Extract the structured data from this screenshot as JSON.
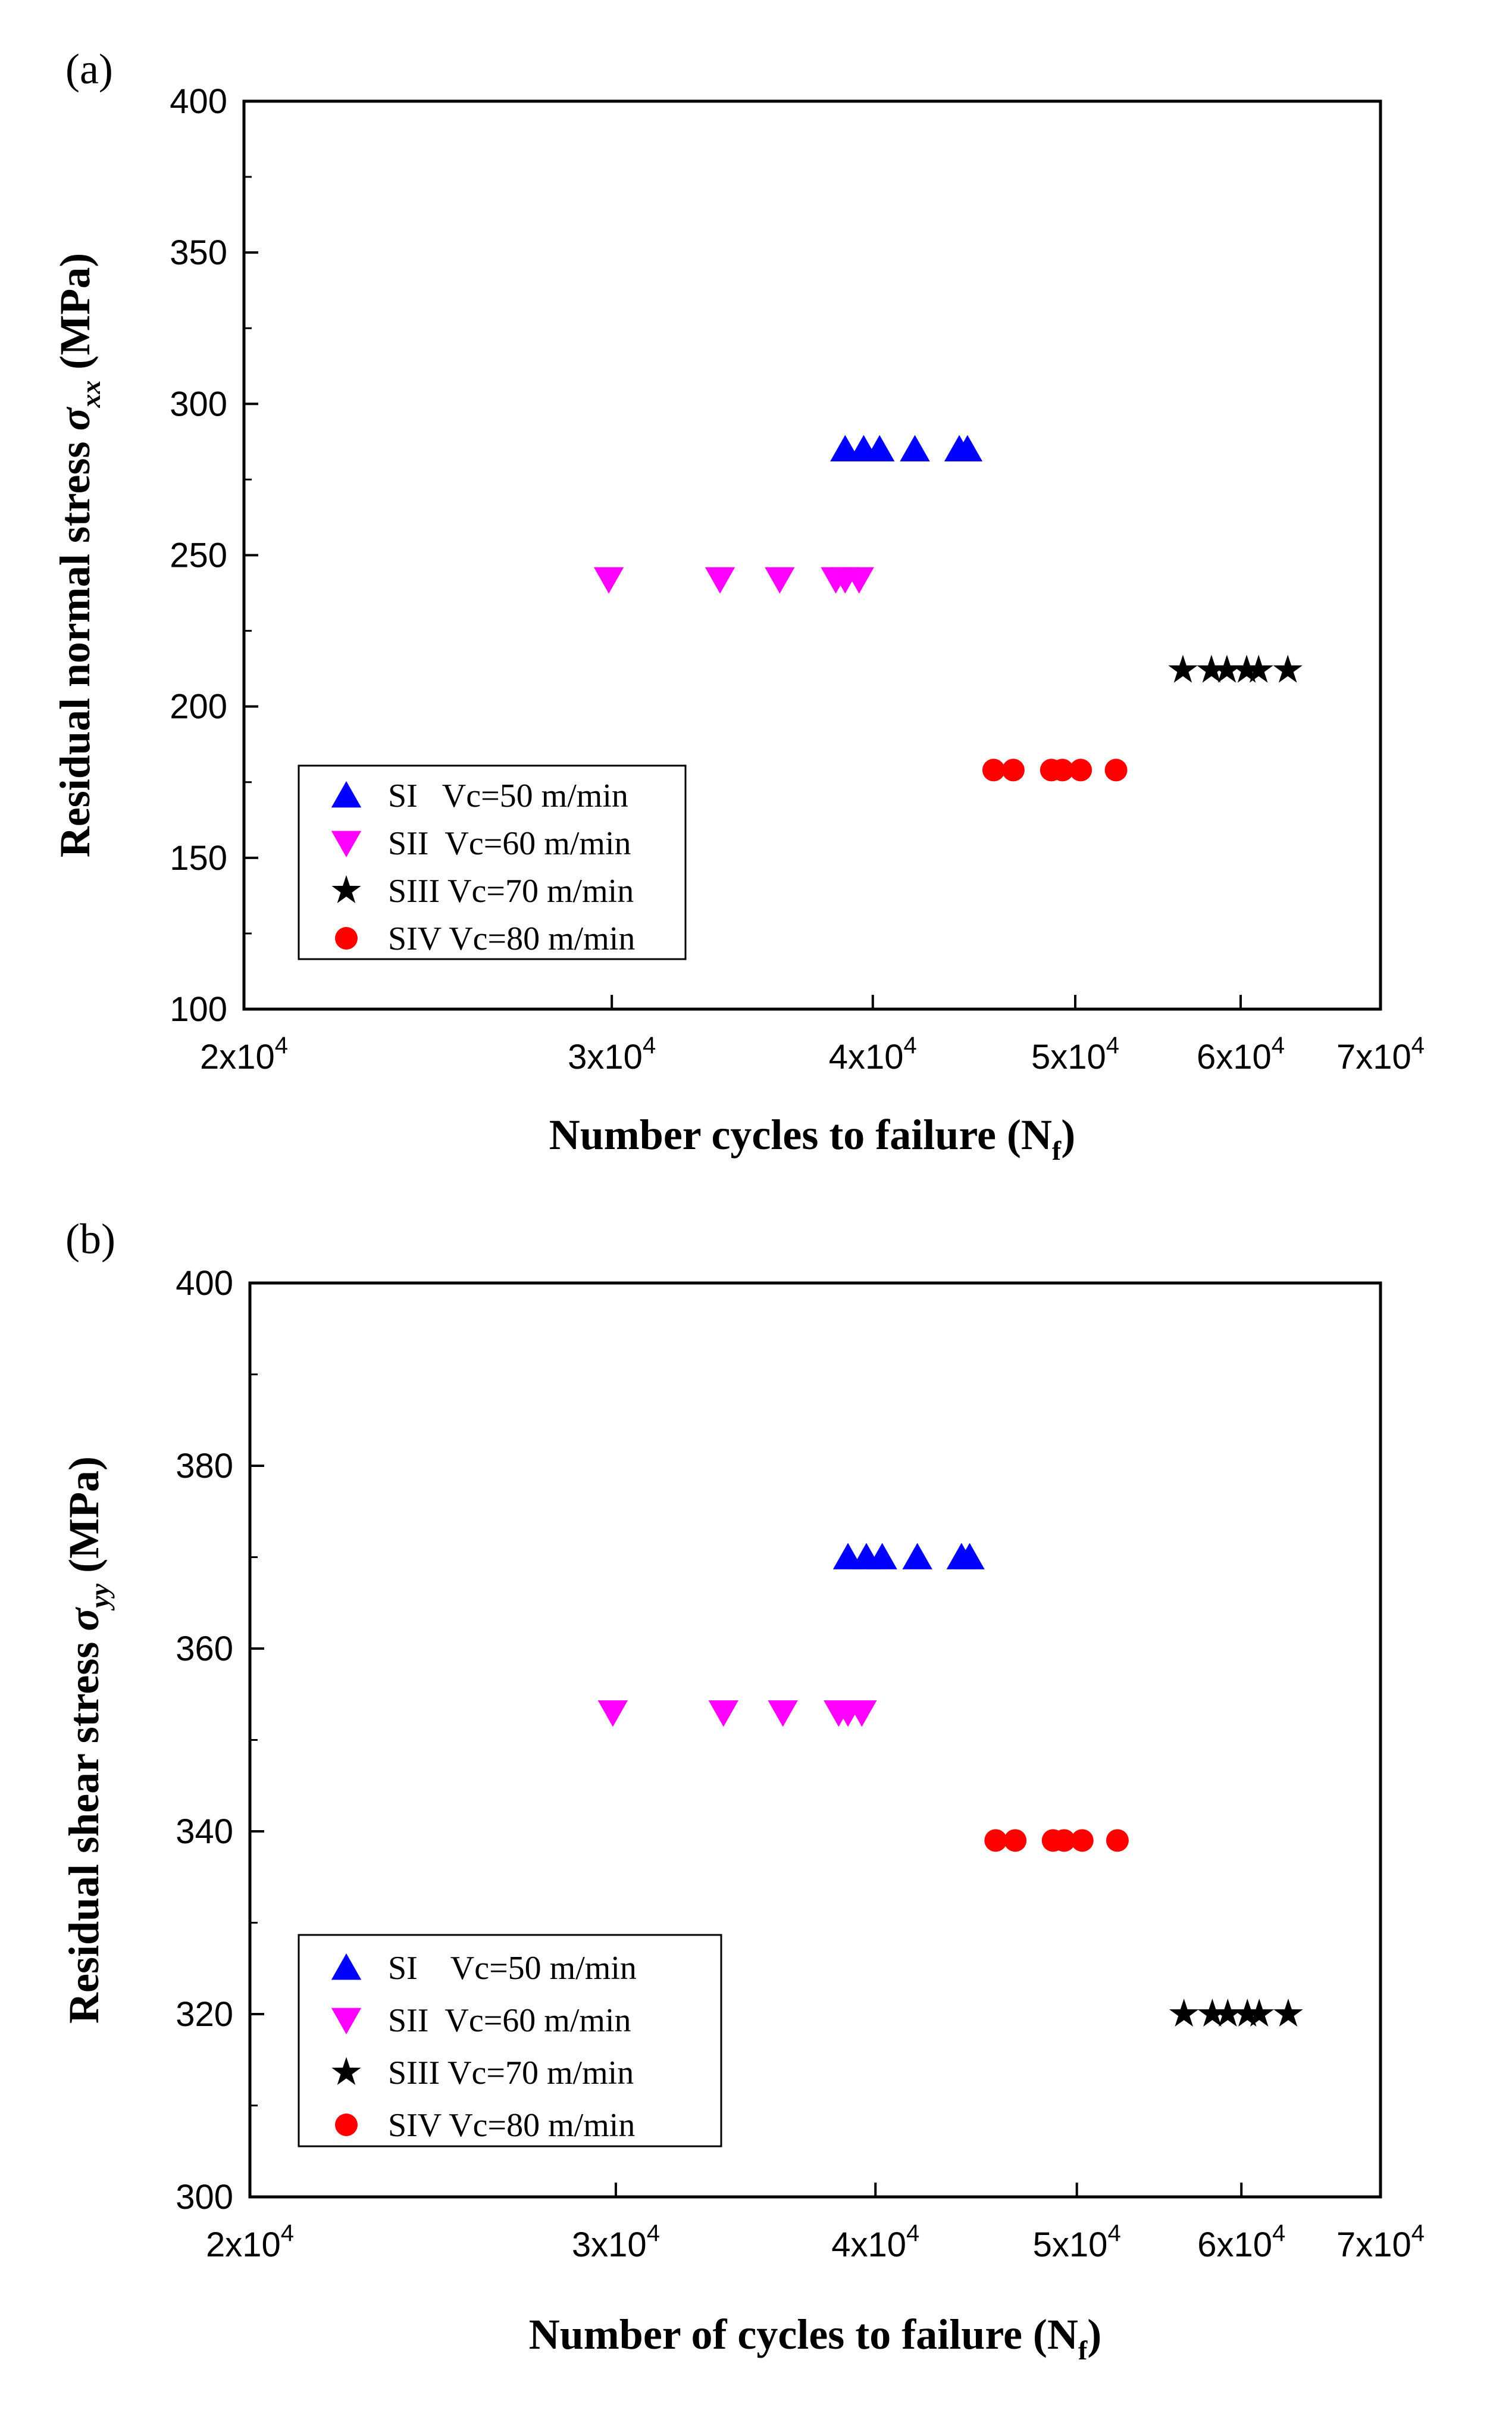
{
  "chart_data": [
    {
      "type": "scatter",
      "panel_label": "(a)",
      "xscale": "log",
      "xlim": [
        20000,
        70000
      ],
      "ylim": [
        100,
        400
      ],
      "yticks": [
        100,
        150,
        200,
        250,
        300,
        350,
        400
      ],
      "xticks": [
        {
          "value": 20000,
          "mant": "2x10",
          "exp": "4"
        },
        {
          "value": 30000,
          "mant": "3x10",
          "exp": "4"
        },
        {
          "value": 40000,
          "mant": "4x10",
          "exp": "4"
        },
        {
          "value": 50000,
          "mant": "5x10",
          "exp": "4"
        },
        {
          "value": 60000,
          "mant": "6x10",
          "exp": "4"
        },
        {
          "value": 70000,
          "mant": "7x10",
          "exp": "4"
        }
      ],
      "xlabel_main": "Number cycles to failure (N",
      "xlabel_sub": "f",
      "xlabel_end": ")",
      "ylabel_main": "Residual normal stress ",
      "ylabel_sym": "σ",
      "ylabel_sub": "xx",
      "ylabel_end": " (MPa)",
      "legend_position": "bottom-left",
      "series": [
        {
          "name": "SI   Vc=50 m/min",
          "marker": "triangle-up",
          "color": "#0000ff",
          "x": [
            38800,
            39600,
            40300,
            41900,
            44000,
            44400
          ],
          "y": [
            285,
            285,
            285,
            285,
            285,
            285
          ]
        },
        {
          "name": "SII  Vc=60 m/min",
          "marker": "triangle-down",
          "color": "#ff00ff",
          "x": [
            29900,
            33800,
            36100,
            38400,
            38800,
            39400
          ],
          "y": [
            242,
            242,
            242,
            242,
            242,
            242
          ]
        },
        {
          "name": "SIII Vc=70 m/min",
          "marker": "star",
          "color": "#000000",
          "x": [
            56300,
            58100,
            59100,
            60400,
            61200,
            63200
          ],
          "y": [
            212,
            212,
            212,
            212,
            212,
            212
          ]
        },
        {
          "name": "SIV Vc=80 m/min",
          "marker": "circle",
          "color": "#ff0000",
          "x": [
            45700,
            46700,
            48700,
            49300,
            50300,
            52300
          ],
          "y": [
            179,
            179,
            179,
            179,
            179,
            179
          ]
        }
      ]
    },
    {
      "type": "scatter",
      "panel_label": "(b)",
      "xscale": "log",
      "xlim": [
        20000,
        70000
      ],
      "ylim": [
        300,
        400
      ],
      "yticks": [
        300,
        320,
        340,
        360,
        380,
        400
      ],
      "xticks": [
        {
          "value": 20000,
          "mant": "2x10",
          "exp": "4"
        },
        {
          "value": 30000,
          "mant": "3x10",
          "exp": "4"
        },
        {
          "value": 40000,
          "mant": "4x10",
          "exp": "4"
        },
        {
          "value": 50000,
          "mant": "5x10",
          "exp": "4"
        },
        {
          "value": 60000,
          "mant": "6x10",
          "exp": "4"
        },
        {
          "value": 70000,
          "mant": "7x10",
          "exp": "4"
        }
      ],
      "xlabel_main": "Number of cycles to failure (N",
      "xlabel_sub": "f",
      "xlabel_end": ")",
      "ylabel_main": "Residual shear stress ",
      "ylabel_sym": "σ",
      "ylabel_sub": "yy",
      "ylabel_end": " (MPa)",
      "legend_position": "bottom-left",
      "series": [
        {
          "name": "SI    Vc=50 m/min",
          "marker": "triangle-up",
          "color": "#0000ff",
          "x": [
            38800,
            39600,
            40300,
            41900,
            44000,
            44400
          ],
          "y": [
            370,
            370,
            370,
            370,
            370,
            370
          ]
        },
        {
          "name": "SII  Vc=60 m/min",
          "marker": "triangle-down",
          "color": "#ff00ff",
          "x": [
            29900,
            33800,
            36100,
            38400,
            38800,
            39400
          ],
          "y": [
            353,
            353,
            353,
            353,
            353,
            353
          ]
        },
        {
          "name": "SIII Vc=70 m/min",
          "marker": "star",
          "color": "#000000",
          "x": [
            56300,
            58100,
            59100,
            60400,
            61200,
            63200
          ],
          "y": [
            320,
            320,
            320,
            320,
            320,
            320
          ]
        },
        {
          "name": "SIV Vc=80 m/min",
          "marker": "circle",
          "color": "#ff0000",
          "x": [
            45700,
            46700,
            48700,
            49300,
            50300,
            52300
          ],
          "y": [
            339,
            339,
            339,
            339,
            339,
            339
          ]
        }
      ]
    }
  ]
}
